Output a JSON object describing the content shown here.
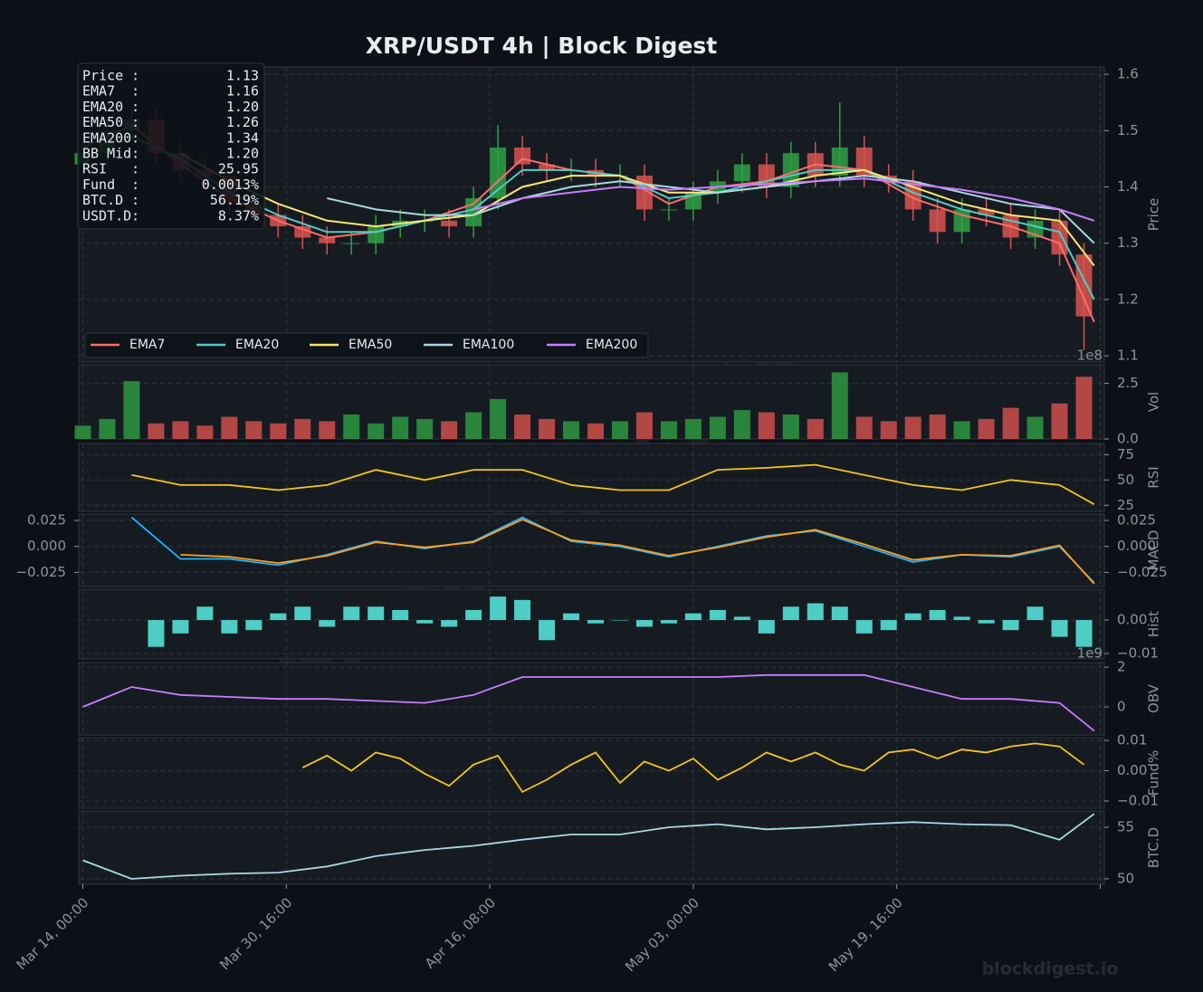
{
  "chart_data": [
    {
      "type": "candlestick",
      "title": "XRP/USDT  4h  |  Block Digest",
      "ylabel": "Price",
      "ylim": [
        1.089,
        1.613
      ],
      "yticks": [
        1.1,
        1.2,
        1.3,
        1.4,
        1.5,
        1.6
      ],
      "grid": true,
      "legend": "lower left",
      "up_color": "#2ea043",
      "down_color": "#d9534f",
      "candles": {
        "x": [
          0,
          12,
          24,
          36,
          48,
          60,
          72,
          84,
          96,
          108,
          120,
          132,
          144,
          156,
          168,
          180,
          192,
          204,
          216,
          228,
          240,
          252,
          264,
          276,
          288,
          300,
          312,
          324,
          336,
          348,
          360,
          372,
          384,
          396,
          408,
          420,
          432,
          444,
          456,
          468,
          480,
          492
        ],
        "open": [
          1.44,
          1.46,
          1.5,
          1.52,
          1.46,
          1.43,
          1.42,
          1.37,
          1.35,
          1.33,
          1.31,
          1.3,
          1.3,
          1.33,
          1.34,
          1.34,
          1.33,
          1.38,
          1.47,
          1.44,
          1.43,
          1.43,
          1.42,
          1.42,
          1.36,
          1.36,
          1.39,
          1.41,
          1.44,
          1.4,
          1.46,
          1.42,
          1.47,
          1.42,
          1.41,
          1.36,
          1.32,
          1.36,
          1.35,
          1.31,
          1.34,
          1.28
        ],
        "high": [
          1.48,
          1.52,
          1.54,
          1.54,
          1.48,
          1.45,
          1.44,
          1.39,
          1.37,
          1.35,
          1.33,
          1.32,
          1.35,
          1.36,
          1.36,
          1.36,
          1.4,
          1.51,
          1.49,
          1.46,
          1.45,
          1.45,
          1.44,
          1.44,
          1.38,
          1.41,
          1.43,
          1.46,
          1.46,
          1.48,
          1.48,
          1.55,
          1.49,
          1.44,
          1.43,
          1.38,
          1.38,
          1.38,
          1.37,
          1.36,
          1.36,
          1.3
        ],
        "low": [
          1.42,
          1.44,
          1.48,
          1.44,
          1.41,
          1.4,
          1.35,
          1.33,
          1.31,
          1.29,
          1.28,
          1.28,
          1.28,
          1.31,
          1.32,
          1.31,
          1.31,
          1.36,
          1.42,
          1.41,
          1.41,
          1.4,
          1.4,
          1.34,
          1.34,
          1.34,
          1.37,
          1.39,
          1.38,
          1.38,
          1.4,
          1.4,
          1.4,
          1.39,
          1.34,
          1.3,
          1.3,
          1.33,
          1.29,
          1.29,
          1.26,
          1.11
        ],
        "close": [
          1.46,
          1.5,
          1.52,
          1.46,
          1.43,
          1.42,
          1.37,
          1.35,
          1.33,
          1.31,
          1.3,
          1.3,
          1.33,
          1.34,
          1.34,
          1.33,
          1.38,
          1.47,
          1.44,
          1.43,
          1.43,
          1.42,
          1.42,
          1.36,
          1.36,
          1.39,
          1.41,
          1.44,
          1.4,
          1.46,
          1.42,
          1.47,
          1.42,
          1.41,
          1.36,
          1.32,
          1.36,
          1.35,
          1.31,
          1.34,
          1.28,
          1.17
        ]
      },
      "x": [
        0,
        24,
        48,
        72,
        96,
        120,
        144,
        168,
        192,
        216,
        240,
        264,
        288,
        312,
        336,
        360,
        384,
        408,
        432,
        456,
        480,
        497
      ],
      "series": [
        {
          "name": "EMA7",
          "color": "#ff6b6b",
          "values": [
            1.47,
            1.51,
            1.44,
            1.38,
            1.34,
            1.31,
            1.32,
            1.34,
            1.37,
            1.45,
            1.43,
            1.42,
            1.37,
            1.4,
            1.41,
            1.44,
            1.43,
            1.38,
            1.35,
            1.33,
            1.3,
            1.16
          ]
        },
        {
          "name": "EMA20",
          "color": "#4ecdc4",
          "values": [
            null,
            1.49,
            1.45,
            1.39,
            1.35,
            1.32,
            1.32,
            1.34,
            1.36,
            1.43,
            1.43,
            1.42,
            1.38,
            1.39,
            1.41,
            1.43,
            1.43,
            1.39,
            1.36,
            1.34,
            1.32,
            1.2
          ]
        },
        {
          "name": "EMA50",
          "color": "#ffe66d",
          "values": [
            null,
            null,
            1.46,
            1.41,
            1.37,
            1.34,
            1.33,
            1.34,
            1.35,
            1.4,
            1.42,
            1.42,
            1.39,
            1.39,
            1.4,
            1.42,
            1.43,
            1.4,
            1.37,
            1.35,
            1.34,
            1.26
          ]
        },
        {
          "name": "EMA100",
          "color": "#a8dadc",
          "values": [
            null,
            null,
            null,
            null,
            null,
            1.38,
            1.36,
            1.35,
            1.35,
            1.38,
            1.4,
            1.41,
            1.4,
            1.39,
            1.4,
            1.41,
            1.42,
            1.41,
            1.39,
            1.37,
            1.36,
            1.3
          ]
        },
        {
          "name": "EMA200",
          "color": "#c77dff",
          "values": [
            null,
            null,
            null,
            null,
            null,
            null,
            null,
            null,
            1.36,
            1.38,
            1.39,
            1.4,
            1.395,
            1.4,
            1.405,
            1.41,
            1.415,
            1.405,
            1.395,
            1.38,
            1.36,
            1.34
          ]
        }
      ]
    },
    {
      "type": "volume",
      "ylabel": "Vol",
      "offset_label": "1e8",
      "ylim": [
        0,
        3.34
      ],
      "yticks": [
        {
          "value": 0,
          "label": "0.0"
        },
        {
          "value": 2.5,
          "label": "2.5"
        }
      ],
      "grid": true,
      "x": [
        0,
        12,
        24,
        36,
        48,
        60,
        72,
        84,
        96,
        108,
        120,
        132,
        144,
        156,
        168,
        180,
        192,
        204,
        216,
        228,
        240,
        252,
        264,
        276,
        288,
        300,
        312,
        324,
        336,
        348,
        360,
        372,
        384,
        396,
        408,
        420,
        432,
        444,
        456,
        468,
        480,
        492
      ],
      "values": [
        0.6,
        0.9,
        2.6,
        0.7,
        0.8,
        0.6,
        1.0,
        0.8,
        0.7,
        0.9,
        0.8,
        1.1,
        0.7,
        1.0,
        0.9,
        0.8,
        1.2,
        1.8,
        1.1,
        0.9,
        0.8,
        0.7,
        0.8,
        1.2,
        0.8,
        0.9,
        1.0,
        1.3,
        1.2,
        1.1,
        0.9,
        3.0,
        1.0,
        0.8,
        1.0,
        1.1,
        0.8,
        0.9,
        1.4,
        1.0,
        1.6,
        2.8
      ]
    },
    {
      "type": "line",
      "ylabel": "RSI",
      "ylim": [
        19,
        86
      ],
      "yticks": [
        25,
        50,
        75
      ],
      "grid": true,
      "x": [
        0,
        24,
        48,
        72,
        96,
        120,
        144,
        168,
        192,
        216,
        240,
        264,
        288,
        312,
        336,
        360,
        384,
        408,
        432,
        456,
        480,
        497
      ],
      "series": [
        {
          "color": "#f5c518",
          "values": [
            null,
            55,
            45,
            45,
            40,
            45,
            60,
            50,
            60,
            60,
            45,
            40,
            40,
            60,
            62,
            65,
            55,
            45,
            40,
            50,
            45,
            26
          ]
        }
      ]
    },
    {
      "type": "line",
      "ylabel": "MACD",
      "left_ticks": true,
      "ylim": [
        -0.0386,
        0.0311
      ],
      "yticks": [
        {
          "value": -0.025,
          "label": "−0.025"
        },
        {
          "value": 0,
          "label": "0.000"
        },
        0.025
      ],
      "grid": true,
      "x": [
        0,
        24,
        48,
        72,
        96,
        120,
        144,
        168,
        192,
        216,
        240,
        264,
        288,
        312,
        336,
        360,
        384,
        408,
        432,
        456,
        480,
        497
      ],
      "series": [
        {
          "color": "#1fb6ff",
          "values": [
            null,
            0.028,
            -0.012,
            -0.012,
            -0.018,
            -0.008,
            0.005,
            -0.002,
            0.005,
            0.028,
            0.005,
            0.0,
            -0.01,
            0.0,
            0.01,
            0.015,
            0.0,
            -0.015,
            -0.008,
            -0.01,
            0.0,
            -0.035
          ]
        },
        {
          "color": "#ff9f1c",
          "values": [
            null,
            null,
            -0.008,
            -0.01,
            -0.016,
            -0.009,
            0.004,
            -0.001,
            0.004,
            0.026,
            0.006,
            0.001,
            -0.009,
            -0.001,
            0.009,
            0.016,
            0.002,
            -0.013,
            -0.008,
            -0.009,
            0.001,
            -0.036
          ]
        }
      ]
    },
    {
      "type": "bar",
      "ylabel": "Hist",
      "color": "#4ecdc4",
      "ylim": [
        -0.0116,
        0.0092
      ],
      "yticks": [
        {
          "value": -0.01,
          "label": "−0.01"
        },
        {
          "value": 0,
          "label": "0.00"
        }
      ],
      "grid": true,
      "x": [
        0,
        12,
        24,
        36,
        48,
        60,
        72,
        84,
        96,
        108,
        120,
        132,
        144,
        156,
        168,
        180,
        192,
        204,
        216,
        228,
        240,
        252,
        264,
        276,
        288,
        300,
        312,
        324,
        336,
        348,
        360,
        372,
        384,
        396,
        408,
        420,
        432,
        444,
        456,
        468,
        480,
        492
      ],
      "values": [
        null,
        null,
        null,
        -0.008,
        -0.004,
        0.004,
        -0.004,
        -0.003,
        0.002,
        0.004,
        -0.002,
        0.004,
        0.004,
        0.003,
        -0.001,
        -0.002,
        0.003,
        0.007,
        0.006,
        -0.006,
        0.002,
        -0.001,
        0.0,
        -0.002,
        -0.001,
        0.002,
        0.003,
        0.001,
        -0.004,
        0.004,
        0.005,
        0.004,
        -0.004,
        -0.003,
        0.002,
        0.003,
        0.001,
        -0.001,
        -0.003,
        0.004,
        -0.005,
        -0.008
      ]
    },
    {
      "type": "line",
      "ylabel": "OBV",
      "offset_label": "1e9",
      "ylim": [
        -1.41,
        2.23
      ],
      "yticks": [
        0,
        2
      ],
      "grid": true,
      "x": [
        0,
        24,
        48,
        72,
        96,
        120,
        144,
        168,
        192,
        216,
        240,
        264,
        288,
        312,
        336,
        360,
        384,
        408,
        432,
        456,
        480,
        497
      ],
      "series": [
        {
          "color": "#c77dff",
          "values": [
            0.0,
            1.0,
            0.6,
            0.5,
            0.4,
            0.4,
            0.3,
            0.2,
            0.6,
            1.5,
            1.5,
            1.5,
            1.5,
            1.5,
            1.6,
            1.6,
            1.6,
            1.0,
            0.4,
            0.4,
            0.2,
            -1.2
          ]
        }
      ]
    },
    {
      "type": "line",
      "ylabel": "Fund%",
      "ylim": [
        -0.0124,
        0.0109
      ],
      "yticks": [
        {
          "value": -0.01,
          "label": "−0.01"
        },
        {
          "value": 0,
          "label": "0.00"
        },
        0.01
      ],
      "grid": true,
      "x": [
        0,
        12,
        24,
        36,
        48,
        60,
        72,
        84,
        96,
        108,
        120,
        132,
        144,
        156,
        168,
        180,
        192,
        204,
        216,
        228,
        240,
        252,
        264,
        276,
        288,
        300,
        312,
        324,
        336,
        348,
        360,
        372,
        384,
        396,
        408,
        420,
        432,
        444,
        456,
        468,
        480,
        492
      ],
      "series": [
        {
          "color": "#f5c518",
          "values": [
            null,
            null,
            null,
            null,
            null,
            null,
            null,
            null,
            null,
            0.001,
            0.005,
            0.0,
            0.006,
            0.004,
            -0.001,
            -0.005,
            0.002,
            0.005,
            -0.007,
            -0.003,
            0.002,
            0.006,
            -0.004,
            0.003,
            0.0,
            0.004,
            -0.003,
            0.001,
            0.006,
            0.003,
            0.006,
            0.002,
            0.0,
            0.006,
            0.007,
            0.004,
            0.007,
            0.006,
            0.008,
            0.009,
            0.008,
            0.002
          ]
        }
      ]
    },
    {
      "type": "line",
      "ylabel": "BTC.D",
      "ylim": [
        49.47,
        56.58
      ],
      "yticks": [
        50,
        55
      ],
      "grid": true,
      "xlim": [
        -2,
        502
      ],
      "xticks": [
        {
          "value": 0,
          "label": "Mar 14, 00:00"
        },
        {
          "value": 100,
          "label": "Mar 30, 16:00"
        },
        {
          "value": 200,
          "label": "Apr 16, 08:00"
        },
        {
          "value": 300,
          "label": "May 03, 00:00"
        },
        {
          "value": 400,
          "label": "May 19, 16:00"
        },
        {
          "value": 500,
          "label": ""
        }
      ],
      "x": [
        0,
        24,
        48,
        72,
        96,
        120,
        144,
        168,
        192,
        216,
        240,
        264,
        288,
        312,
        336,
        360,
        384,
        408,
        432,
        456,
        480,
        497
      ],
      "series": [
        {
          "color": "#a8dadc",
          "values": [
            51.8,
            50.0,
            50.3,
            50.5,
            50.6,
            51.2,
            52.2,
            52.8,
            53.2,
            53.8,
            54.3,
            54.3,
            55.0,
            55.3,
            54.8,
            55.0,
            55.3,
            55.5,
            55.3,
            55.2,
            53.8,
            56.3
          ]
        }
      ]
    }
  ],
  "info_box": [
    [
      "Price :",
      "1.13"
    ],
    [
      "EMA7  :",
      "1.16"
    ],
    [
      "EMA20 :",
      "1.20"
    ],
    [
      "EMA50 :",
      "1.26"
    ],
    [
      "EMA200:",
      "1.34"
    ],
    [
      "BB Mid:",
      "1.20"
    ],
    [
      "RSI   :",
      "25.95"
    ],
    [
      "Fund  :",
      "0.0013%"
    ],
    [
      "BTC.D :",
      "56.19%"
    ],
    [
      "USDT.D:",
      "8.37%"
    ]
  ],
  "watermark": "blockdigest.io",
  "footer": "blockdigest.io"
}
